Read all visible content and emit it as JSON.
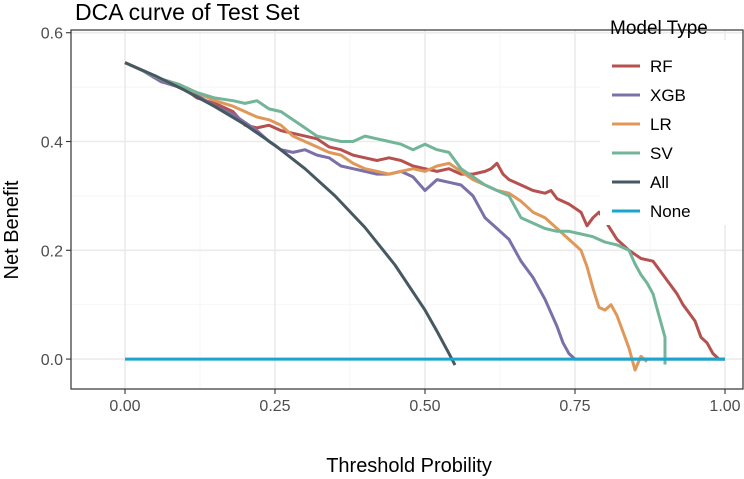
{
  "chart_data": {
    "type": "line",
    "title": "DCA curve of Test Set",
    "xlabel": "Threshold Probility",
    "ylabel": "Net Benefit",
    "xlim": [
      -0.09,
      1.03
    ],
    "ylim": [
      -0.055,
      0.605
    ],
    "x_ticks": [
      0.0,
      0.25,
      0.5,
      0.75,
      1.0
    ],
    "x_tick_labels": [
      "0.00",
      "0.25",
      "0.50",
      "0.75",
      "1.00"
    ],
    "y_ticks": [
      0.0,
      0.2,
      0.4,
      0.6
    ],
    "y_tick_labels": [
      "0.0",
      "0.2",
      "0.4",
      "0.6"
    ],
    "grid": true,
    "legend": {
      "title": "Model Type",
      "position": "right"
    },
    "series": [
      {
        "name": "RF",
        "color": "#b5514f",
        "points": [
          [
            0.0,
            0.545
          ],
          [
            0.03,
            0.53
          ],
          [
            0.06,
            0.515
          ],
          [
            0.09,
            0.505
          ],
          [
            0.12,
            0.48
          ],
          [
            0.15,
            0.47
          ],
          [
            0.18,
            0.455
          ],
          [
            0.2,
            0.43
          ],
          [
            0.22,
            0.425
          ],
          [
            0.24,
            0.43
          ],
          [
            0.26,
            0.42
          ],
          [
            0.28,
            0.415
          ],
          [
            0.3,
            0.41
          ],
          [
            0.32,
            0.405
          ],
          [
            0.34,
            0.39
          ],
          [
            0.36,
            0.385
          ],
          [
            0.38,
            0.375
          ],
          [
            0.4,
            0.37
          ],
          [
            0.42,
            0.365
          ],
          [
            0.44,
            0.37
          ],
          [
            0.46,
            0.365
          ],
          [
            0.48,
            0.355
          ],
          [
            0.5,
            0.35
          ],
          [
            0.52,
            0.345
          ],
          [
            0.54,
            0.35
          ],
          [
            0.56,
            0.34
          ],
          [
            0.58,
            0.34
          ],
          [
            0.6,
            0.345
          ],
          [
            0.61,
            0.35
          ],
          [
            0.62,
            0.36
          ],
          [
            0.63,
            0.34
          ],
          [
            0.64,
            0.33
          ],
          [
            0.66,
            0.32
          ],
          [
            0.68,
            0.31
          ],
          [
            0.7,
            0.305
          ],
          [
            0.71,
            0.31
          ],
          [
            0.72,
            0.295
          ],
          [
            0.74,
            0.285
          ],
          [
            0.76,
            0.27
          ],
          [
            0.77,
            0.245
          ],
          [
            0.78,
            0.26
          ],
          [
            0.79,
            0.27
          ],
          [
            0.8,
            0.255
          ],
          [
            0.82,
            0.22
          ],
          [
            0.84,
            0.2
          ],
          [
            0.86,
            0.185
          ],
          [
            0.88,
            0.18
          ],
          [
            0.9,
            0.15
          ],
          [
            0.92,
            0.12
          ],
          [
            0.93,
            0.1
          ],
          [
            0.95,
            0.07
          ],
          [
            0.96,
            0.04
          ],
          [
            0.97,
            0.03
          ],
          [
            0.98,
            0.01
          ],
          [
            0.99,
            0.0
          ],
          [
            1.0,
            0.0
          ]
        ]
      },
      {
        "name": "XGB",
        "color": "#7b70a8",
        "points": [
          [
            0.0,
            0.545
          ],
          [
            0.03,
            0.53
          ],
          [
            0.06,
            0.51
          ],
          [
            0.09,
            0.5
          ],
          [
            0.12,
            0.485
          ],
          [
            0.15,
            0.465
          ],
          [
            0.18,
            0.45
          ],
          [
            0.2,
            0.435
          ],
          [
            0.22,
            0.42
          ],
          [
            0.24,
            0.4
          ],
          [
            0.26,
            0.385
          ],
          [
            0.28,
            0.38
          ],
          [
            0.3,
            0.385
          ],
          [
            0.32,
            0.375
          ],
          [
            0.34,
            0.37
          ],
          [
            0.36,
            0.355
          ],
          [
            0.38,
            0.35
          ],
          [
            0.4,
            0.345
          ],
          [
            0.42,
            0.34
          ],
          [
            0.44,
            0.34
          ],
          [
            0.46,
            0.345
          ],
          [
            0.48,
            0.335
          ],
          [
            0.5,
            0.31
          ],
          [
            0.52,
            0.33
          ],
          [
            0.54,
            0.325
          ],
          [
            0.56,
            0.32
          ],
          [
            0.58,
            0.3
          ],
          [
            0.59,
            0.28
          ],
          [
            0.6,
            0.26
          ],
          [
            0.62,
            0.24
          ],
          [
            0.64,
            0.22
          ],
          [
            0.65,
            0.2
          ],
          [
            0.66,
            0.18
          ],
          [
            0.68,
            0.15
          ],
          [
            0.7,
            0.11
          ],
          [
            0.72,
            0.06
          ],
          [
            0.73,
            0.03
          ],
          [
            0.74,
            0.01
          ],
          [
            0.75,
            0.0
          ],
          [
            0.8,
            0.0
          ],
          [
            0.85,
            0.0
          ],
          [
            0.9,
            0.0
          ],
          [
            0.95,
            0.0
          ],
          [
            1.0,
            0.0
          ]
        ]
      },
      {
        "name": "LR",
        "color": "#e0985a",
        "points": [
          [
            0.0,
            0.545
          ],
          [
            0.03,
            0.53
          ],
          [
            0.06,
            0.515
          ],
          [
            0.09,
            0.5
          ],
          [
            0.12,
            0.49
          ],
          [
            0.15,
            0.475
          ],
          [
            0.18,
            0.465
          ],
          [
            0.2,
            0.455
          ],
          [
            0.22,
            0.445
          ],
          [
            0.24,
            0.44
          ],
          [
            0.26,
            0.43
          ],
          [
            0.28,
            0.41
          ],
          [
            0.3,
            0.4
          ],
          [
            0.32,
            0.39
          ],
          [
            0.34,
            0.38
          ],
          [
            0.36,
            0.375
          ],
          [
            0.38,
            0.36
          ],
          [
            0.4,
            0.35
          ],
          [
            0.42,
            0.345
          ],
          [
            0.44,
            0.34
          ],
          [
            0.46,
            0.345
          ],
          [
            0.48,
            0.35
          ],
          [
            0.5,
            0.345
          ],
          [
            0.52,
            0.355
          ],
          [
            0.54,
            0.36
          ],
          [
            0.56,
            0.345
          ],
          [
            0.58,
            0.33
          ],
          [
            0.6,
            0.32
          ],
          [
            0.62,
            0.31
          ],
          [
            0.64,
            0.305
          ],
          [
            0.66,
            0.29
          ],
          [
            0.68,
            0.27
          ],
          [
            0.7,
            0.26
          ],
          [
            0.72,
            0.24
          ],
          [
            0.74,
            0.22
          ],
          [
            0.76,
            0.2
          ],
          [
            0.77,
            0.17
          ],
          [
            0.78,
            0.13
          ],
          [
            0.79,
            0.095
          ],
          [
            0.8,
            0.09
          ],
          [
            0.81,
            0.1
          ],
          [
            0.82,
            0.08
          ],
          [
            0.83,
            0.05
          ],
          [
            0.84,
            0.02
          ],
          [
            0.85,
            -0.02
          ],
          [
            0.86,
            0.005
          ],
          [
            0.87,
            -0.005
          ]
        ]
      },
      {
        "name": "SV",
        "color": "#72b598",
        "points": [
          [
            0.0,
            0.545
          ],
          [
            0.03,
            0.53
          ],
          [
            0.06,
            0.515
          ],
          [
            0.09,
            0.505
          ],
          [
            0.12,
            0.49
          ],
          [
            0.15,
            0.48
          ],
          [
            0.18,
            0.475
          ],
          [
            0.2,
            0.47
          ],
          [
            0.22,
            0.475
          ],
          [
            0.24,
            0.46
          ],
          [
            0.26,
            0.455
          ],
          [
            0.28,
            0.44
          ],
          [
            0.3,
            0.425
          ],
          [
            0.32,
            0.41
          ],
          [
            0.34,
            0.405
          ],
          [
            0.36,
            0.4
          ],
          [
            0.38,
            0.4
          ],
          [
            0.4,
            0.41
          ],
          [
            0.42,
            0.405
          ],
          [
            0.44,
            0.4
          ],
          [
            0.46,
            0.395
          ],
          [
            0.48,
            0.385
          ],
          [
            0.5,
            0.395
          ],
          [
            0.52,
            0.385
          ],
          [
            0.54,
            0.38
          ],
          [
            0.56,
            0.35
          ],
          [
            0.58,
            0.335
          ],
          [
            0.6,
            0.32
          ],
          [
            0.62,
            0.31
          ],
          [
            0.64,
            0.3
          ],
          [
            0.65,
            0.28
          ],
          [
            0.66,
            0.26
          ],
          [
            0.68,
            0.25
          ],
          [
            0.7,
            0.24
          ],
          [
            0.72,
            0.235
          ],
          [
            0.74,
            0.235
          ],
          [
            0.76,
            0.23
          ],
          [
            0.78,
            0.225
          ],
          [
            0.8,
            0.215
          ],
          [
            0.82,
            0.21
          ],
          [
            0.84,
            0.2
          ],
          [
            0.85,
            0.175
          ],
          [
            0.86,
            0.155
          ],
          [
            0.87,
            0.14
          ],
          [
            0.88,
            0.12
          ],
          [
            0.89,
            0.08
          ],
          [
            0.9,
            0.04
          ],
          [
            0.9,
            -0.01
          ]
        ]
      },
      {
        "name": "All",
        "color": "#465862",
        "points": [
          [
            0.0,
            0.545
          ],
          [
            0.05,
            0.521
          ],
          [
            0.1,
            0.494
          ],
          [
            0.15,
            0.464
          ],
          [
            0.2,
            0.431
          ],
          [
            0.25,
            0.393
          ],
          [
            0.3,
            0.35
          ],
          [
            0.35,
            0.3
          ],
          [
            0.4,
            0.242
          ],
          [
            0.45,
            0.173
          ],
          [
            0.5,
            0.09
          ],
          [
            0.52,
            0.051
          ],
          [
            0.54,
            0.01
          ],
          [
            0.55,
            -0.011
          ]
        ]
      },
      {
        "name": "None",
        "color": "#1aa6cc",
        "points": [
          [
            0.0,
            0.0
          ],
          [
            1.0,
            0.0
          ]
        ]
      }
    ]
  }
}
